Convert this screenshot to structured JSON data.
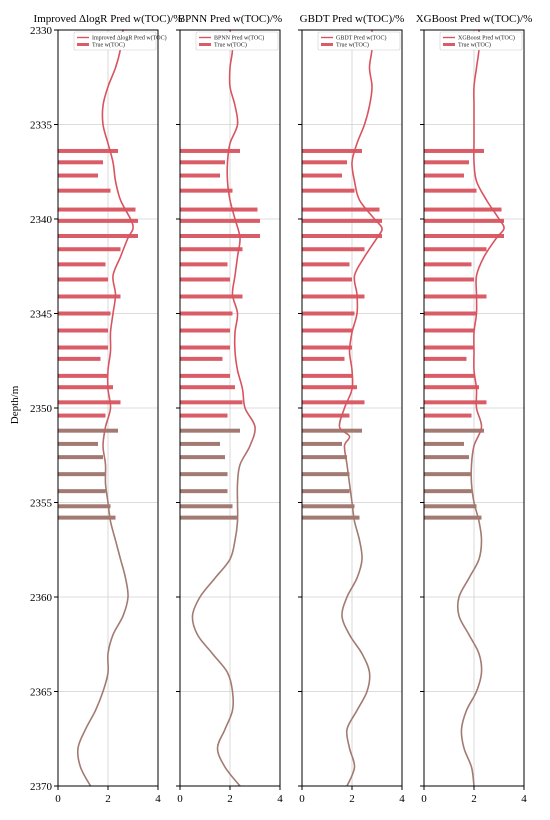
{
  "chart_data": {
    "type": "well-log",
    "ylabel": "Depth/m",
    "ylim": [
      2330,
      2370
    ],
    "yticks": [
      2330,
      2335,
      2340,
      2345,
      2350,
      2355,
      2360,
      2365,
      2370
    ],
    "xlim": [
      0,
      4
    ],
    "xticks": [
      0,
      2,
      4
    ],
    "grid": true,
    "legend_placement": "top-right",
    "colors": {
      "pred_line": "#d9535f",
      "true_bar": "#d95c67",
      "lower_blend": "#a27a72",
      "grid": "#d0d0d0"
    },
    "true_bars": [
      {
        "depth": 2336.4,
        "value": 2.4
      },
      {
        "depth": 2337.0,
        "value": 1.8
      },
      {
        "depth": 2337.7,
        "value": 1.6
      },
      {
        "depth": 2338.5,
        "value": 2.1
      },
      {
        "depth": 2339.5,
        "value": 3.1
      },
      {
        "depth": 2340.1,
        "value": 3.2
      },
      {
        "depth": 2340.9,
        "value": 3.2
      },
      {
        "depth": 2341.6,
        "value": 2.5
      },
      {
        "depth": 2342.4,
        "value": 1.9
      },
      {
        "depth": 2343.2,
        "value": 2.0
      },
      {
        "depth": 2344.1,
        "value": 2.5
      },
      {
        "depth": 2345.0,
        "value": 2.1
      },
      {
        "depth": 2345.9,
        "value": 2.0
      },
      {
        "depth": 2346.8,
        "value": 2.0
      },
      {
        "depth": 2347.4,
        "value": 1.7
      },
      {
        "depth": 2348.3,
        "value": 2.0
      },
      {
        "depth": 2348.9,
        "value": 2.2
      },
      {
        "depth": 2349.7,
        "value": 2.5
      },
      {
        "depth": 2350.4,
        "value": 1.9
      },
      {
        "depth": 2351.2,
        "value": 2.4
      },
      {
        "depth": 2351.9,
        "value": 1.6
      },
      {
        "depth": 2352.6,
        "value": 1.8
      },
      {
        "depth": 2353.5,
        "value": 1.9
      },
      {
        "depth": 2354.4,
        "value": 1.9
      },
      {
        "depth": 2355.2,
        "value": 2.1
      },
      {
        "depth": 2355.8,
        "value": 2.3
      }
    ],
    "panels": [
      {
        "title": "Improved ΔlogR Pred w(TOC)/%",
        "legend": [
          "Improved ΔlogR Pred w(TOC)",
          "True w(TOC)"
        ],
        "show_ytick_labels": true,
        "pred": [
          [
            2.6,
            2330
          ],
          [
            2.5,
            2331
          ],
          [
            2.3,
            2332
          ],
          [
            2.0,
            2333
          ],
          [
            1.8,
            2334
          ],
          [
            1.8,
            2335
          ],
          [
            2.0,
            2336
          ],
          [
            2.2,
            2337
          ],
          [
            2.3,
            2338
          ],
          [
            2.5,
            2339
          ],
          [
            2.9,
            2340
          ],
          [
            3.0,
            2340.5
          ],
          [
            2.8,
            2341
          ],
          [
            2.5,
            2342
          ],
          [
            2.2,
            2343
          ],
          [
            2.3,
            2344
          ],
          [
            2.2,
            2345
          ],
          [
            2.1,
            2346
          ],
          [
            2.1,
            2347
          ],
          [
            2.0,
            2348
          ],
          [
            2.0,
            2349
          ],
          [
            2.1,
            2350
          ],
          [
            1.9,
            2351
          ],
          [
            1.8,
            2352
          ],
          [
            1.9,
            2353
          ],
          [
            1.9,
            2354
          ],
          [
            2.0,
            2355
          ],
          [
            2.1,
            2356
          ],
          [
            2.3,
            2357
          ],
          [
            2.5,
            2358
          ],
          [
            2.7,
            2359
          ],
          [
            2.8,
            2360
          ],
          [
            2.6,
            2361
          ],
          [
            2.2,
            2362
          ],
          [
            2.0,
            2363
          ],
          [
            2.0,
            2364
          ],
          [
            1.8,
            2365
          ],
          [
            1.5,
            2366
          ],
          [
            1.1,
            2367
          ],
          [
            0.8,
            2368
          ],
          [
            0.9,
            2369
          ],
          [
            1.3,
            2370
          ]
        ]
      },
      {
        "title": "BPNN Pred w(TOC)/%",
        "legend": [
          "BPNN Pred w(TOC)",
          "True w(TOC)"
        ],
        "show_ytick_labels": false,
        "pred": [
          [
            2.0,
            2330
          ],
          [
            2.1,
            2331
          ],
          [
            2.0,
            2332
          ],
          [
            2.0,
            2333
          ],
          [
            2.2,
            2334
          ],
          [
            2.3,
            2335
          ],
          [
            2.0,
            2336
          ],
          [
            1.9,
            2337
          ],
          [
            1.9,
            2338
          ],
          [
            2.0,
            2339
          ],
          [
            2.2,
            2340
          ],
          [
            2.4,
            2341
          ],
          [
            2.3,
            2342
          ],
          [
            2.2,
            2343
          ],
          [
            2.1,
            2344
          ],
          [
            2.3,
            2345
          ],
          [
            2.2,
            2346
          ],
          [
            2.2,
            2347
          ],
          [
            2.3,
            2348
          ],
          [
            2.5,
            2349
          ],
          [
            2.6,
            2350
          ],
          [
            3.0,
            2351
          ],
          [
            2.8,
            2352
          ],
          [
            2.4,
            2353
          ],
          [
            2.3,
            2354
          ],
          [
            2.3,
            2355
          ],
          [
            2.3,
            2356
          ],
          [
            2.2,
            2357
          ],
          [
            2.0,
            2358
          ],
          [
            1.4,
            2359
          ],
          [
            0.8,
            2360
          ],
          [
            0.5,
            2361
          ],
          [
            0.7,
            2362
          ],
          [
            1.3,
            2363
          ],
          [
            1.9,
            2364
          ],
          [
            2.1,
            2365
          ],
          [
            2.1,
            2366
          ],
          [
            1.8,
            2367
          ],
          [
            1.5,
            2368
          ],
          [
            1.8,
            2369
          ],
          [
            2.4,
            2370
          ]
        ]
      },
      {
        "title": "GBDT Pred w(TOC)/%",
        "legend": [
          "GBDT Pred w(TOC)",
          "True w(TOC)"
        ],
        "show_ytick_labels": false,
        "pred": [
          [
            2.8,
            2330
          ],
          [
            2.8,
            2331
          ],
          [
            2.7,
            2332
          ],
          [
            2.8,
            2333
          ],
          [
            2.7,
            2334
          ],
          [
            2.5,
            2335
          ],
          [
            2.2,
            2336
          ],
          [
            2.0,
            2337
          ],
          [
            2.1,
            2338
          ],
          [
            2.3,
            2339
          ],
          [
            2.9,
            2340
          ],
          [
            3.2,
            2340.5
          ],
          [
            3.0,
            2341
          ],
          [
            2.5,
            2342
          ],
          [
            2.1,
            2343
          ],
          [
            2.2,
            2344
          ],
          [
            2.2,
            2345
          ],
          [
            2.0,
            2346
          ],
          [
            1.9,
            2347
          ],
          [
            2.0,
            2348
          ],
          [
            2.0,
            2349
          ],
          [
            1.7,
            2350
          ],
          [
            1.5,
            2351
          ],
          [
            1.9,
            2351.5
          ],
          [
            1.7,
            2352
          ],
          [
            1.8,
            2353
          ],
          [
            1.9,
            2354
          ],
          [
            2.0,
            2355
          ],
          [
            2.1,
            2356
          ],
          [
            2.3,
            2357
          ],
          [
            2.4,
            2358
          ],
          [
            2.2,
            2359
          ],
          [
            1.8,
            2360
          ],
          [
            1.6,
            2361
          ],
          [
            1.9,
            2362
          ],
          [
            2.4,
            2363
          ],
          [
            2.7,
            2364
          ],
          [
            2.6,
            2365
          ],
          [
            2.2,
            2366
          ],
          [
            1.8,
            2367
          ],
          [
            1.9,
            2368
          ],
          [
            2.1,
            2369
          ],
          [
            1.8,
            2370
          ]
        ]
      },
      {
        "title": "XGBoost Pred w(TOC)/%",
        "legend": [
          "XGBoost Pred w(TOC)",
          "True w(TOC)"
        ],
        "show_ytick_labels": false,
        "pred": [
          [
            2.2,
            2330
          ],
          [
            2.2,
            2331
          ],
          [
            2.1,
            2332
          ],
          [
            2.0,
            2333
          ],
          [
            2.0,
            2334
          ],
          [
            2.0,
            2335
          ],
          [
            2.0,
            2336
          ],
          [
            2.0,
            2337
          ],
          [
            2.1,
            2338
          ],
          [
            2.5,
            2339
          ],
          [
            3.0,
            2340
          ],
          [
            3.2,
            2340.5
          ],
          [
            2.9,
            2341
          ],
          [
            2.4,
            2342
          ],
          [
            2.1,
            2343
          ],
          [
            2.1,
            2344
          ],
          [
            2.1,
            2345
          ],
          [
            2.0,
            2346
          ],
          [
            2.0,
            2347
          ],
          [
            2.0,
            2348
          ],
          [
            2.1,
            2349
          ],
          [
            2.1,
            2350
          ],
          [
            2.3,
            2351
          ],
          [
            2.0,
            2352
          ],
          [
            1.9,
            2353
          ],
          [
            1.9,
            2354
          ],
          [
            2.0,
            2355
          ],
          [
            2.2,
            2356
          ],
          [
            2.3,
            2357
          ],
          [
            2.2,
            2358
          ],
          [
            1.8,
            2359
          ],
          [
            1.4,
            2360
          ],
          [
            1.4,
            2361
          ],
          [
            1.8,
            2362
          ],
          [
            2.2,
            2363
          ],
          [
            2.3,
            2364
          ],
          [
            2.1,
            2365
          ],
          [
            1.7,
            2366
          ],
          [
            1.5,
            2367
          ],
          [
            1.6,
            2368
          ],
          [
            1.9,
            2369
          ],
          [
            2.0,
            2370
          ]
        ]
      }
    ]
  }
}
